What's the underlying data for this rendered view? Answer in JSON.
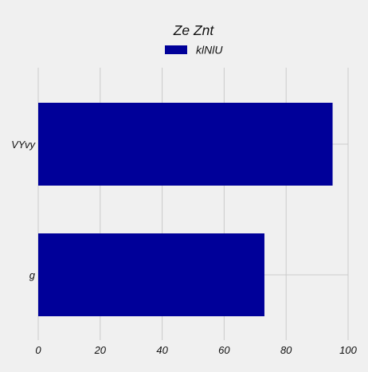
{
  "chart_data": {
    "type": "bar",
    "orientation": "horizontal",
    "title": "Ze Znt",
    "xlabel": "",
    "ylabel": "",
    "categories": [
      "VYvy",
      "g"
    ],
    "series": [
      {
        "name": "klNlU",
        "values": [
          95,
          73
        ],
        "color": "#000099"
      }
    ],
    "xlim": [
      0,
      100
    ],
    "xticks": [
      0,
      20,
      40,
      60,
      80,
      100
    ],
    "grid": true,
    "legend_position": "top-center",
    "background_color": "#f0f0f0",
    "grid_color": "#cbcbcb"
  }
}
